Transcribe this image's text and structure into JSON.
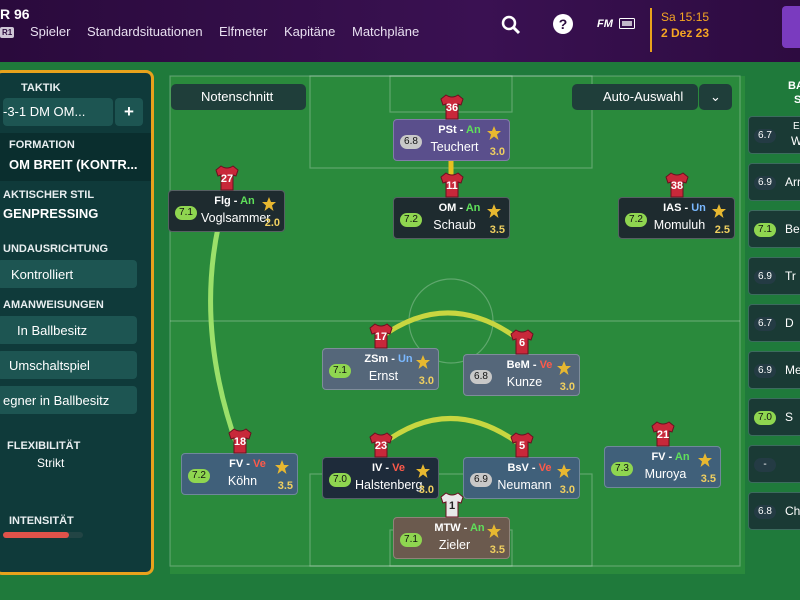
{
  "top_bar": {
    "club": "R 96",
    "badge": "R1",
    "nav": [
      "Spieler",
      "Standardsituationen",
      "Elfmeter",
      "Kapitäne",
      "Matchpläne"
    ],
    "fm": "FM",
    "time": "Sa 15:15",
    "date": "2 Dez 23"
  },
  "left_panel": {
    "tactic_label": "TAKTIK",
    "tactic": "-3-1 DM OM...",
    "add": "+",
    "formation_label": "FORMATION",
    "formation": "OM BREIT (KONTR...",
    "style_label": "AKTISCHER STIL",
    "style": "GENPRESSING",
    "mentality_label": "UNDAUSRICHTUNG",
    "mentality": "Kontrolliert",
    "instructions_label": "AMANWEISUNGEN",
    "instructions": [
      "In Ballbesitz",
      "Umschaltspiel",
      "egner in Ballbesitz"
    ],
    "flex_label": "FLEXIBILITÄT",
    "flex": "Strikt",
    "intensity_label": "INTENSITÄT"
  },
  "pitch": {
    "rating_button": "Notenschnitt",
    "auto_button": "Auto-Auswahl",
    "players": [
      {
        "number": "36",
        "position": "PSt",
        "status": "An",
        "rating": "6.8",
        "name": "Teuchert",
        "stars": "3.0"
      },
      {
        "number": "11",
        "position": "OM",
        "status": "An",
        "rating": "7.2",
        "name": "Schaub",
        "stars": "3.5"
      },
      {
        "number": "27",
        "position": "Flg",
        "status": "An",
        "rating": "7.1",
        "name": "Voglsammer",
        "stars": "2.0"
      },
      {
        "number": "38",
        "position": "IAS",
        "status": "Un",
        "rating": "7.2",
        "name": "Momuluh",
        "stars": "2.5"
      },
      {
        "number": "17",
        "position": "ZSm",
        "status": "Un",
        "rating": "7.1",
        "name": "Ernst",
        "stars": "3.0"
      },
      {
        "number": "6",
        "position": "BeM",
        "status": "Ve",
        "rating": "6.8",
        "name": "Kunze",
        "stars": "3.0"
      },
      {
        "number": "18",
        "position": "FV",
        "status": "Ve",
        "rating": "7.2",
        "name": "Köhn",
        "stars": "3.5"
      },
      {
        "number": "23",
        "position": "IV",
        "status": "Ve",
        "rating": "7.0",
        "name": "Halstenberg",
        "stars": "3.0"
      },
      {
        "number": "5",
        "position": "BsV",
        "status": "Ve",
        "rating": "6.9",
        "name": "Neumann",
        "stars": "3.0"
      },
      {
        "number": "21",
        "position": "FV",
        "status": "An",
        "rating": "7.3",
        "name": "Muroya",
        "stars": "3.5"
      },
      {
        "number": "1",
        "position": "MTW",
        "status": "An",
        "rating": "7.1",
        "name": "Zieler",
        "stars": "3.5"
      }
    ]
  },
  "right_panel": {
    "header": "BA",
    "subheader": "S",
    "subs": [
      {
        "rating": "6.7",
        "role": "E",
        "name": "We"
      },
      {
        "rating": "6.9",
        "name": "Arr"
      },
      {
        "rating": "7.1",
        "name": "Besu"
      },
      {
        "rating": "6.9",
        "name": "Tr"
      },
      {
        "rating": "6.7",
        "name": "D"
      },
      {
        "rating": "6.9",
        "name": "Me"
      },
      {
        "rating": "7.0",
        "name": "S"
      },
      {
        "rating": "-"
      },
      {
        "rating": "6.8",
        "name": "Chri"
      }
    ]
  }
}
